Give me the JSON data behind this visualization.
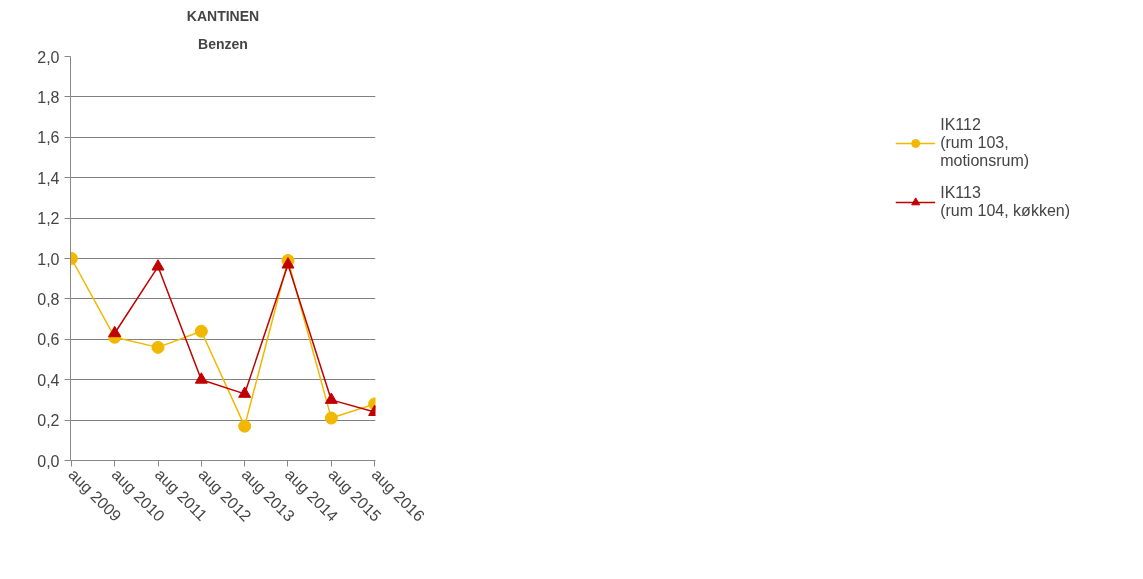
{
  "chart_data": {
    "type": "line",
    "title": "KANTINEN",
    "subtitle": "Benzen",
    "categories": [
      "aug 2009",
      "aug 2010",
      "aug 2011",
      "aug 2012",
      "aug 2013",
      "aug 2014",
      "aug 2015",
      "aug 2016"
    ],
    "series": [
      {
        "name": "IK112\n(rum 103,\nmotionsrum)",
        "color": "#f2b800",
        "marker": "circle",
        "values": [
          1.0,
          0.61,
          0.56,
          0.64,
          0.17,
          0.99,
          0.21,
          0.28
        ]
      },
      {
        "name": "IK113\n(rum 104, køkken)",
        "color": "#c00000",
        "marker": "triangle",
        "values": [
          null,
          0.63,
          0.96,
          0.4,
          0.33,
          0.97,
          0.3,
          0.24
        ]
      }
    ],
    "ylim": [
      0,
      2
    ],
    "yticks": [
      {
        "value": 0,
        "label": "0,0"
      },
      {
        "value": 0.2,
        "label": "0,2"
      },
      {
        "value": 0.4,
        "label": "0,4"
      },
      {
        "value": 0.6,
        "label": "0,6"
      },
      {
        "value": 0.8,
        "label": "0,8"
      },
      {
        "value": 1.0,
        "label": "1,0"
      },
      {
        "value": 1.2,
        "label": "1,2"
      },
      {
        "value": 1.4,
        "label": "1,4"
      },
      {
        "value": 1.6,
        "label": "1,6"
      },
      {
        "value": 1.8,
        "label": "1,8"
      },
      {
        "value": 2.0,
        "label": "2,0"
      }
    ],
    "grid": "y",
    "legend": "right"
  }
}
